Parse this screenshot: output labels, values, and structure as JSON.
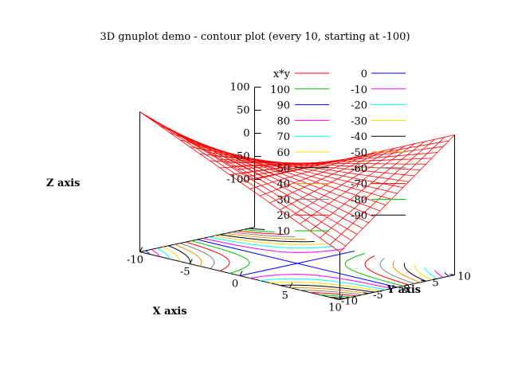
{
  "chart_data": {
    "type": "surface-with-contours",
    "title": "3D gnuplot demo - contour plot (every 10, starting at -100)",
    "xlabel": "X axis",
    "ylabel": "Y axis",
    "zlabel": "Z axis",
    "function": "x*y",
    "xlim": [
      -10,
      10
    ],
    "ylim": [
      -10,
      10
    ],
    "zlim": [
      -100,
      100
    ],
    "x_ticks": [
      "-10",
      "-5",
      "0",
      "5",
      "10"
    ],
    "y_ticks": [
      "10",
      "5",
      "0",
      "-5",
      "-10"
    ],
    "z_ticks": [
      "100",
      "50",
      "0",
      "-50",
      "-100"
    ],
    "surface_color": "#ff0000",
    "legend_placement": "top-right",
    "legend": [
      {
        "label": "x*y",
        "color": "#ff0000"
      },
      {
        "label": "100",
        "color": "#00c000",
        "level": 100
      },
      {
        "label": "90",
        "color": "#0000ff",
        "level": 90
      },
      {
        "label": "80",
        "color": "#ff00ff",
        "level": 80
      },
      {
        "label": "70",
        "color": "#00ffff",
        "level": 70
      },
      {
        "label": "60",
        "color": "#ffd700",
        "level": 60
      },
      {
        "label": "50",
        "color": "#000000",
        "level": 50
      },
      {
        "label": "40",
        "color": "#ff8c00",
        "level": 40
      },
      {
        "label": "30",
        "color": "#808080",
        "level": 30
      },
      {
        "label": "20",
        "color": "#ff0000",
        "level": 20
      },
      {
        "label": "10",
        "color": "#00c000",
        "level": 10
      },
      {
        "label": "0",
        "color": "#0000ff",
        "level": 0
      },
      {
        "label": "-10",
        "color": "#ff00ff",
        "level": -10
      },
      {
        "label": "-20",
        "color": "#00ffff",
        "level": -20
      },
      {
        "label": "-30",
        "color": "#ffd700",
        "level": -30
      },
      {
        "label": "-40",
        "color": "#000000",
        "level": -40
      },
      {
        "label": "-50",
        "color": "#ff8c00",
        "level": -50
      },
      {
        "label": "-60",
        "color": "#808080",
        "level": -60
      },
      {
        "label": "-70",
        "color": "#ff0000",
        "level": -70
      },
      {
        "label": "-80",
        "color": "#00c000",
        "level": -80
      },
      {
        "label": "-90",
        "color": "#000000",
        "level": -90
      }
    ]
  }
}
